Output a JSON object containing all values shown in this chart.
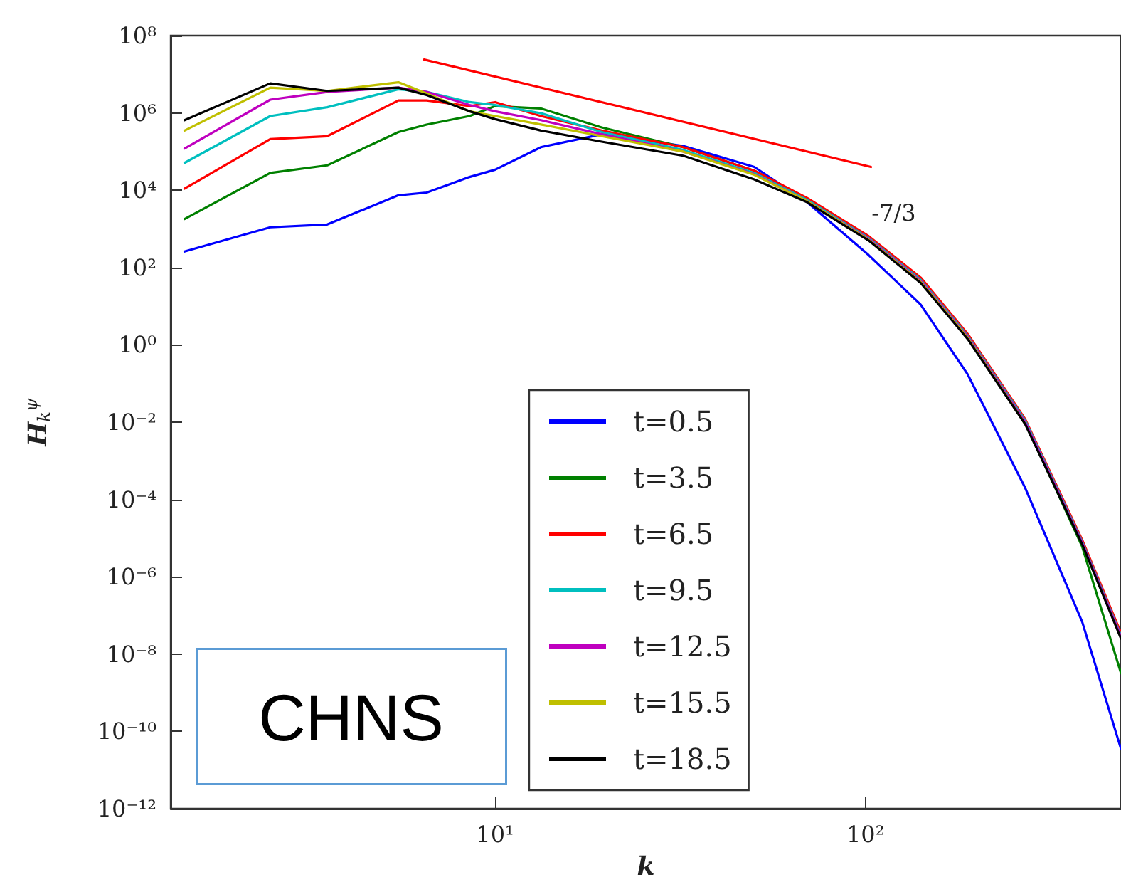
{
  "chart_data": {
    "type": "line",
    "xlabel": "k",
    "ylabel": "H$_{k}$$^{ψ}$",
    "x": [
      1.45,
      2.47,
      3.52,
      5.48,
      6.53,
      8.53,
      10,
      13.3,
      19.4,
      32.2,
      50.1,
      69.6,
      102,
      141,
      189,
      270,
      385,
      490
    ],
    "log": "xy",
    "xlim": [
      1.33,
      490
    ],
    "xticks": [
      {
        "value": 10,
        "label": "10¹"
      },
      {
        "value": 100,
        "label": "10²"
      }
    ],
    "ylim": [
      1e-12,
      100000000.0
    ],
    "yticks": [
      {
        "value": 1e-12,
        "label": "10⁻¹²"
      },
      {
        "value": 1e-10,
        "label": "10⁻¹⁰"
      },
      {
        "value": 1e-08,
        "label": "10⁻⁸"
      },
      {
        "value": 1e-06,
        "label": "10⁻⁶"
      },
      {
        "value": 0.0001,
        "label": "10⁻⁴"
      },
      {
        "value": 0.01,
        "label": "10⁻²"
      },
      {
        "value": 1,
        "label": "10⁰"
      },
      {
        "value": 100,
        "label": "10²"
      },
      {
        "value": 10000,
        "label": "10⁴"
      },
      {
        "value": 1000000.0,
        "label": "10⁶"
      },
      {
        "value": 100000000.0,
        "label": "10⁸"
      }
    ],
    "grid": false,
    "legend": "bottom",
    "line_style": "solid",
    "marker": "none",
    "series": [
      {
        "name": "t=0.5",
        "color": "#0000ff",
        "values": [
          260,
          1100,
          1300,
          7400,
          8700,
          22000,
          34000,
          130000,
          280000,
          140000,
          40000,
          4900,
          210,
          11,
          0.17,
          0.0002,
          6.8e-08,
          3.5e-11
        ]
      },
      {
        "name": "t=3.5",
        "color": "#008000",
        "values": [
          1800,
          28000,
          44000,
          320000,
          500000,
          830000,
          1500000,
          1300000,
          420000,
          130000,
          32000,
          6000,
          620,
          50,
          1.6,
          0.01,
          6e-06,
          3.2e-09
        ]
      },
      {
        "name": "t=6.5",
        "color": "#ff0000",
        "values": [
          11000,
          210000,
          250000,
          2100000,
          2100000,
          1500000,
          1900000,
          830000,
          350000,
          130000,
          32000,
          6300,
          650,
          55,
          1.9,
          0.012,
          9e-06,
          3.5e-08
        ]
      },
      {
        "name": "t=9.5",
        "color": "#00bfbf",
        "values": [
          51000,
          830000,
          1400000,
          4100000,
          3500000,
          1900000,
          1600000,
          980000,
          320000,
          110000,
          28000,
          5600,
          580,
          48,
          1.7,
          0.011,
          8e-06,
          3e-08
        ]
      },
      {
        "name": "t=12.5",
        "color": "#bf00bf",
        "values": [
          120000,
          2200000,
          3500000,
          4500000,
          3500000,
          1600000,
          1100000,
          650000,
          280000,
          100000,
          26000,
          5200,
          550,
          45,
          1.6,
          0.01,
          7.5e-06,
          2.8e-08
        ]
      },
      {
        "name": "t=15.5",
        "color": "#bfbf00",
        "values": [
          350000,
          4500000,
          3700000,
          6200000,
          3200000,
          1100000,
          830000,
          500000,
          250000,
          100000,
          25000,
          5200,
          520,
          42,
          1.5,
          0.009,
          null,
          null
        ]
      },
      {
        "name": "t=18.5",
        "color": "#000000",
        "values": [
          650000,
          5800000,
          3700000,
          4500000,
          2900000,
          1100000,
          690000,
          350000,
          180000,
          78000,
          19000,
          4900,
          500,
          40,
          1.4,
          0.0089,
          6.9e-06,
          2.5e-08
        ]
      },
      {
        "color": "#ff0000",
        "x": [
          6.43,
          103.5
        ],
        "values": [
          24000000,
          40000
        ]
      }
    ],
    "annotations": [
      "CHNS",
      "-7/3"
    ]
  }
}
